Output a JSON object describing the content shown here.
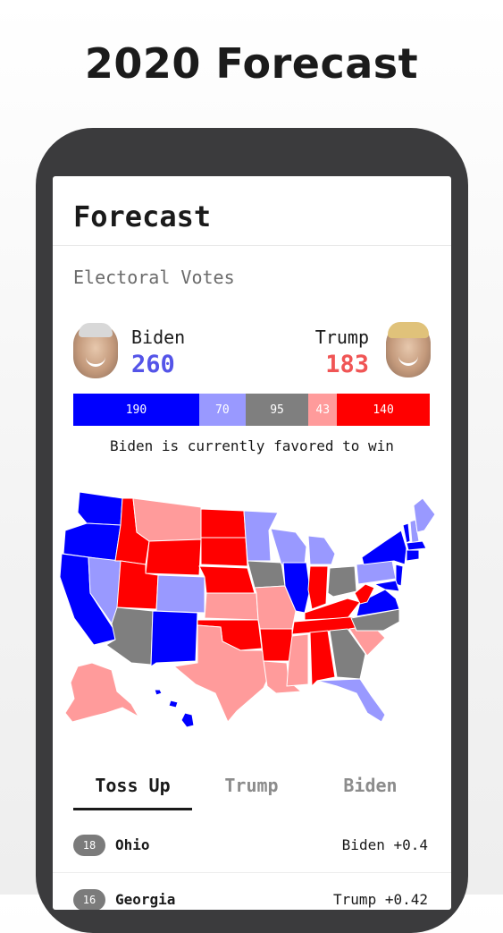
{
  "promo": {
    "title": "2020 Forecast"
  },
  "header": {
    "title": "Forecast"
  },
  "section": {
    "title": "Electoral Votes"
  },
  "candidates": {
    "biden": {
      "name": "Biden",
      "votes": "260",
      "color": "#5454e8"
    },
    "trump": {
      "name": "Trump",
      "votes": "183",
      "color": "#f05555"
    }
  },
  "ev_bar": {
    "segments": [
      {
        "label": "190",
        "value": 190,
        "color": "#0000ff"
      },
      {
        "label": "70",
        "value": 70,
        "color": "#9999ff"
      },
      {
        "label": "95",
        "value": 95,
        "color": "#7f7f7f"
      },
      {
        "label": "43",
        "value": 43,
        "color": "#ff9b9b"
      },
      {
        "label": "140",
        "value": 140,
        "color": "#ff0000"
      }
    ]
  },
  "status": {
    "text": "Biden is currently favored to win"
  },
  "map_colors": {
    "solid_dem": "#0000ff",
    "lean_dem": "#9999ff",
    "toss_up": "#7f7f7f",
    "lean_rep": "#ff9b9b",
    "solid_rep": "#ff0000"
  },
  "tabs": [
    {
      "label": "Toss Up",
      "active": true
    },
    {
      "label": "Trump",
      "active": false
    },
    {
      "label": "Biden",
      "active": false
    }
  ],
  "rows": [
    {
      "ev": "18",
      "state": "Ohio",
      "margin": "Biden +0.4"
    },
    {
      "ev": "16",
      "state": "Georgia",
      "margin": "Trump +0.42"
    }
  ]
}
